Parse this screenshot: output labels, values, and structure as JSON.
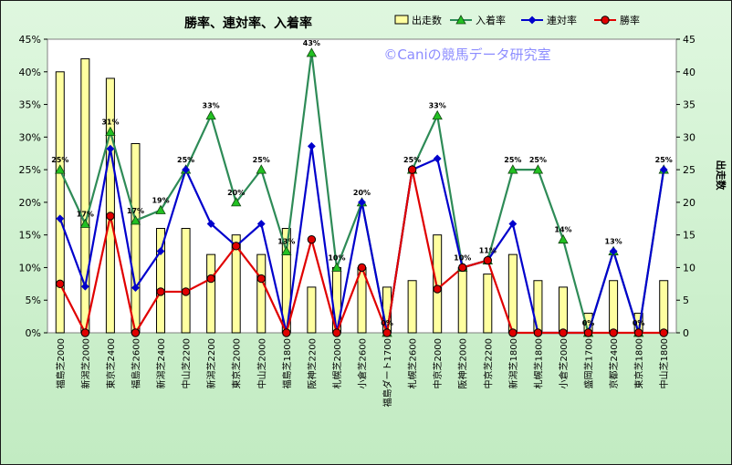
{
  "chart_data": {
    "type": "bar",
    "title": "勝率、連対率、入着率",
    "watermark": "©Caniの競馬データ研究室",
    "ylabel_right": "出走数",
    "ylim_left": [
      0,
      45
    ],
    "ylim_right": [
      0,
      45
    ],
    "left_ticks": [
      "0%",
      "5%",
      "10%",
      "15%",
      "20%",
      "25%",
      "30%",
      "35%",
      "40%",
      "45%"
    ],
    "right_ticks": [
      "0",
      "5",
      "10",
      "15",
      "20",
      "25",
      "30",
      "35",
      "40",
      "45"
    ],
    "grid": false,
    "legend_position": "top-right",
    "categories": [
      "福島芝2000",
      "新潟芝2000",
      "東京芝2400",
      "福島芝2600",
      "新潟芝2400",
      "中山芝2200",
      "新潟芝2200",
      "東京芝2000",
      "中山芝2000",
      "福島芝1800",
      "阪神芝2200",
      "札幌芝2000",
      "小倉芝2600",
      "福島ダート1700",
      "札幌芝2600",
      "中京芝2000",
      "阪神芝2000",
      "中京芝2200",
      "新潟芝1800",
      "札幌芝1800",
      "小倉芝2000",
      "盛岡芝1700",
      "京都芝2400",
      "東京芝1800",
      "中山芝1800"
    ],
    "series": [
      {
        "name": "出走数",
        "kind": "bar",
        "axis": "right",
        "color": "#ffffa0",
        "values": [
          40,
          42,
          39,
          29,
          16,
          16,
          12,
          15,
          12,
          16,
          7,
          10,
          10,
          7,
          8,
          15,
          10,
          9,
          12,
          8,
          7,
          3,
          8,
          3,
          8
        ]
      },
      {
        "name": "入着率",
        "kind": "line",
        "axis": "left",
        "color": "#2e8b57",
        "marker": "triangle",
        "values": [
          25,
          16.7,
          30.8,
          17.2,
          18.8,
          25,
          33.3,
          20,
          25,
          12.5,
          42.9,
          10,
          20,
          0,
          25,
          33.3,
          10,
          11.1,
          25,
          25,
          14.3,
          0,
          12.5,
          0,
          25
        ],
        "labels": [
          "25%",
          "17%",
          "31%",
          "17%",
          "19%",
          "25%",
          "33%",
          "20%",
          "25%",
          "13%",
          "43%",
          "10%",
          "20%",
          "0%",
          "25%",
          "33%",
          "10%",
          "11%",
          "25%",
          "25%",
          "14%",
          "0%",
          "13%",
          "0%",
          "25%"
        ]
      },
      {
        "name": "連対率",
        "kind": "line",
        "axis": "left",
        "color": "#0000cc",
        "marker": "diamond",
        "values": [
          17.5,
          7.1,
          28.2,
          6.9,
          12.5,
          25,
          16.7,
          13.3,
          16.7,
          0,
          28.6,
          0,
          20,
          0,
          25,
          26.7,
          10,
          11.1,
          16.7,
          0,
          0,
          0,
          12.5,
          0,
          25
        ]
      },
      {
        "name": "勝率",
        "kind": "line",
        "axis": "left",
        "color": "#e00000",
        "marker": "circle",
        "values": [
          7.5,
          0,
          17.9,
          0,
          6.3,
          6.3,
          8.3,
          13.3,
          8.3,
          0,
          14.3,
          0,
          10,
          0,
          25,
          6.7,
          10,
          11.1,
          0,
          0,
          0,
          0,
          0,
          0,
          0
        ]
      }
    ]
  }
}
